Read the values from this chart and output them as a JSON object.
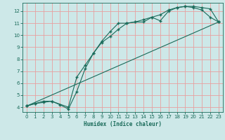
{
  "xlabel": "Humidex (Indice chaleur)",
  "bg_color": "#cde8e8",
  "grid_color": "#e8a0a0",
  "line_color": "#1a6b5a",
  "xticks": [
    0,
    1,
    2,
    3,
    4,
    5,
    6,
    7,
    8,
    9,
    10,
    11,
    12,
    13,
    14,
    15,
    16,
    17,
    18,
    19,
    20,
    21,
    22,
    23
  ],
  "yticks": [
    4,
    5,
    6,
    7,
    8,
    9,
    10,
    11,
    12
  ],
  "xlim": [
    -0.5,
    23.5
  ],
  "ylim": [
    3.6,
    12.7
  ],
  "line1_x": [
    0,
    1,
    2,
    3,
    4,
    5,
    6,
    7,
    8,
    9,
    10,
    11,
    12,
    13,
    14,
    15,
    16,
    17,
    18,
    19,
    20,
    21,
    22,
    23
  ],
  "line1_y": [
    4.1,
    4.3,
    4.4,
    4.5,
    4.2,
    3.85,
    5.3,
    7.2,
    8.5,
    9.4,
    9.9,
    10.5,
    11.0,
    11.1,
    11.1,
    11.5,
    11.2,
    12.0,
    12.3,
    12.4,
    12.3,
    12.1,
    11.5,
    11.1
  ],
  "line2_x": [
    0,
    1,
    2,
    3,
    5,
    6,
    7,
    8,
    9,
    10,
    11,
    12,
    13,
    14,
    15,
    16,
    17,
    18,
    19,
    20,
    21,
    22,
    23
  ],
  "line2_y": [
    4.1,
    4.3,
    4.5,
    4.5,
    4.0,
    6.5,
    7.5,
    8.5,
    9.5,
    10.3,
    11.0,
    11.0,
    11.1,
    11.3,
    11.5,
    11.7,
    12.1,
    12.3,
    12.4,
    12.4,
    12.3,
    12.2,
    11.1
  ],
  "line3_x": [
    0,
    23
  ],
  "line3_y": [
    4.1,
    11.1
  ],
  "xlabel_fontsize": 5.5,
  "tick_fontsize": 5.0,
  "linewidth": 0.8,
  "markersize": 2.5
}
